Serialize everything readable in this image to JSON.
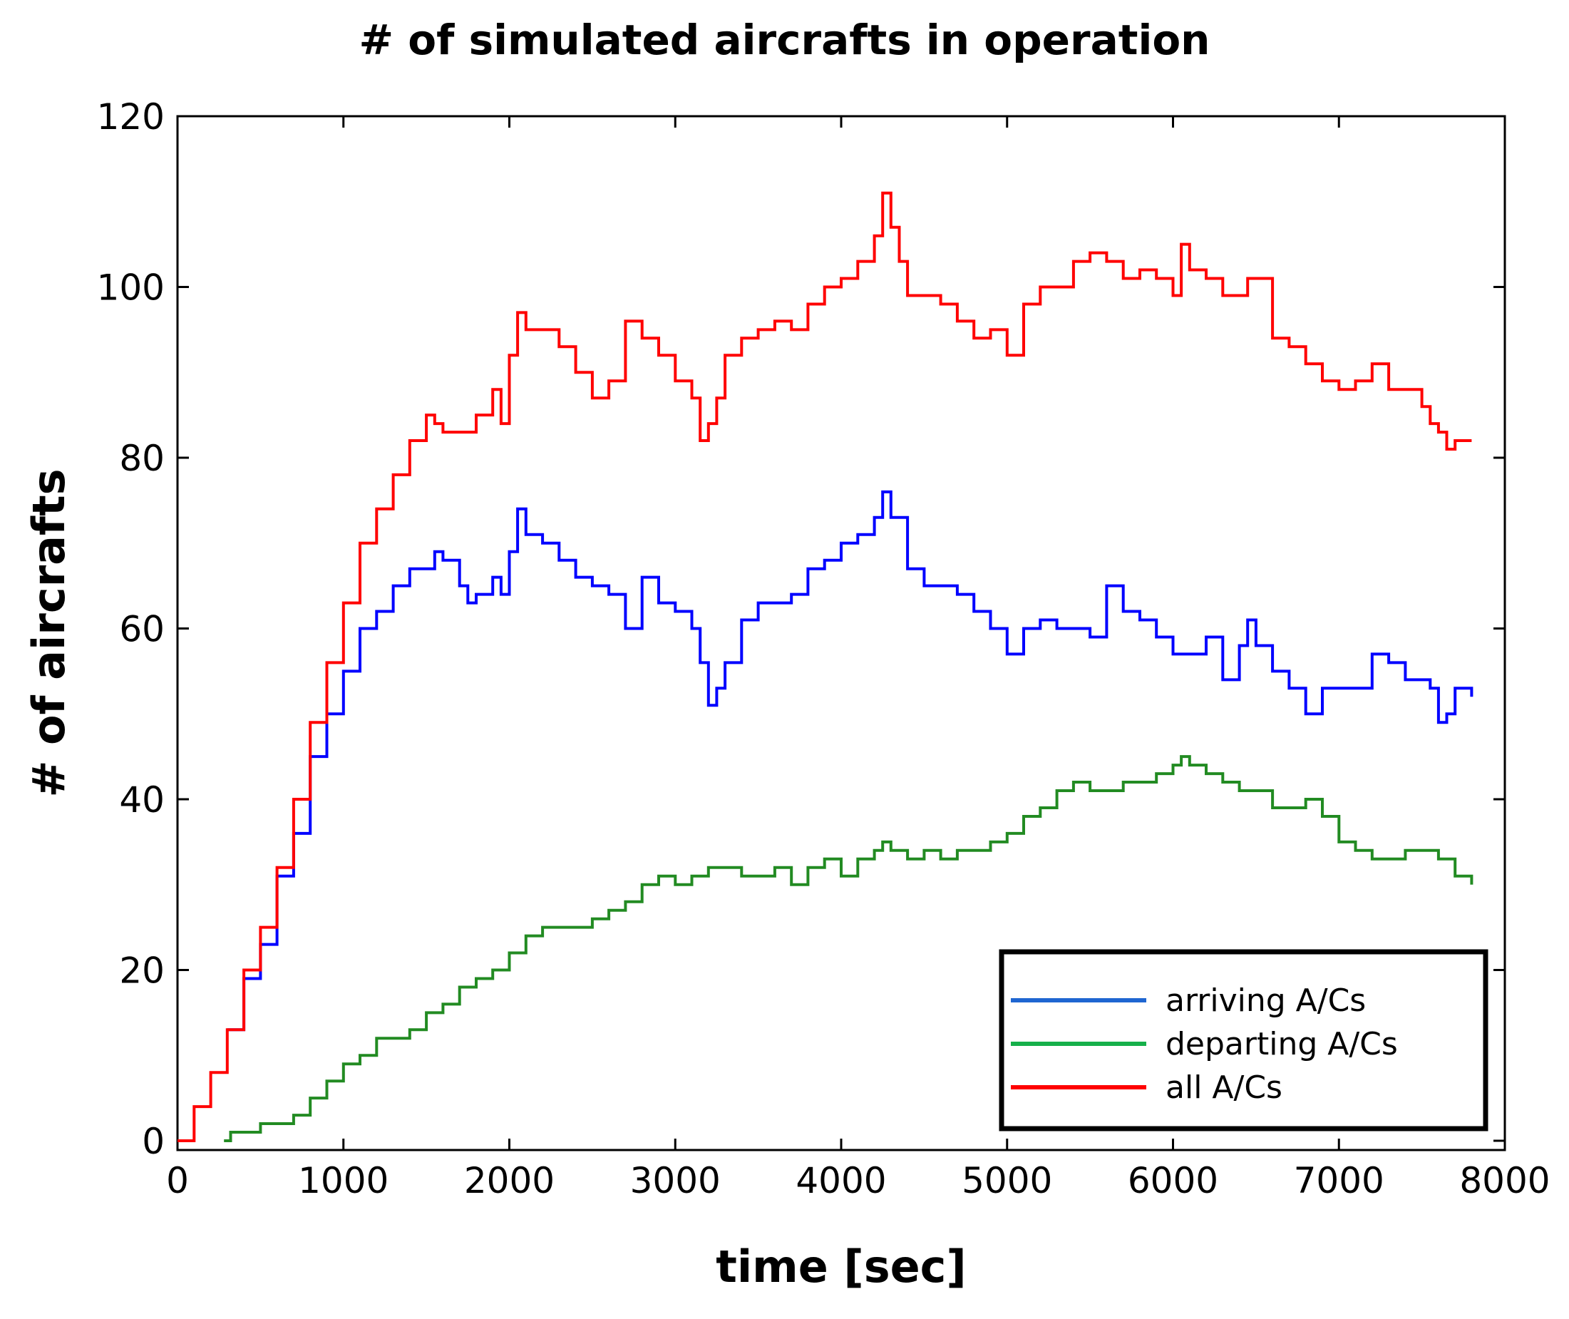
{
  "chart_data": {
    "type": "line",
    "title": "# of simulated aircrafts in operation",
    "xlabel": "time [sec]",
    "ylabel": "# of aircrafts",
    "xlim": [
      0,
      8000
    ],
    "ylim": [
      0,
      120
    ],
    "xticks": [
      0,
      1000,
      2000,
      3000,
      4000,
      5000,
      6000,
      7000,
      8000
    ],
    "yticks": [
      0,
      20,
      40,
      60,
      80,
      100,
      120
    ],
    "grid": false,
    "legend_position": "bottom-right",
    "series": [
      {
        "name": "arriving A/Cs",
        "legend_label": "arriving A/Cs",
        "legend_color": "#1f66d1",
        "color": "#0000ff",
        "x": [
          300,
          400,
          500,
          600,
          700,
          800,
          900,
          1000,
          1100,
          1200,
          1300,
          1400,
          1500,
          1550,
          1600,
          1700,
          1750,
          1800,
          1900,
          1950,
          2000,
          2050,
          2100,
          2200,
          2300,
          2400,
          2500,
          2600,
          2700,
          2800,
          2900,
          3000,
          3100,
          3150,
          3200,
          3250,
          3300,
          3400,
          3500,
          3600,
          3700,
          3800,
          3900,
          4000,
          4100,
          4200,
          4250,
          4300,
          4400,
          4500,
          4600,
          4700,
          4800,
          4900,
          5000,
          5100,
          5200,
          5300,
          5400,
          5500,
          5600,
          5700,
          5800,
          5900,
          6000,
          6100,
          6200,
          6300,
          6400,
          6450,
          6500,
          6600,
          6700,
          6800,
          6900,
          7000,
          7100,
          7200,
          7300,
          7400,
          7500,
          7550,
          7600,
          7650,
          7700,
          7800
        ],
        "values": [
          13,
          19,
          23,
          31,
          36,
          45,
          50,
          55,
          60,
          62,
          65,
          67,
          67,
          69,
          68,
          65,
          63,
          64,
          66,
          64,
          69,
          74,
          71,
          70,
          68,
          66,
          65,
          64,
          60,
          66,
          63,
          62,
          60,
          56,
          51,
          53,
          56,
          61,
          63,
          63,
          64,
          67,
          68,
          70,
          71,
          73,
          76,
          73,
          67,
          65,
          65,
          64,
          62,
          60,
          57,
          60,
          61,
          60,
          60,
          59,
          65,
          62,
          61,
          59,
          57,
          57,
          59,
          54,
          58,
          61,
          58,
          55,
          53,
          50,
          53,
          53,
          53,
          57,
          56,
          54,
          54,
          53,
          49,
          50,
          53,
          52
        ]
      },
      {
        "name": "departing A/Cs",
        "legend_label": "departing A/Cs",
        "legend_color": "#16b04a",
        "color": "#228b22",
        "x": [
          280,
          320,
          400,
          500,
          600,
          700,
          800,
          900,
          1000,
          1100,
          1200,
          1300,
          1400,
          1500,
          1600,
          1700,
          1800,
          1900,
          2000,
          2100,
          2200,
          2300,
          2400,
          2500,
          2600,
          2700,
          2800,
          2900,
          3000,
          3100,
          3200,
          3300,
          3400,
          3500,
          3600,
          3700,
          3800,
          3900,
          4000,
          4100,
          4200,
          4250,
          4300,
          4400,
          4500,
          4600,
          4700,
          4800,
          4900,
          5000,
          5100,
          5200,
          5300,
          5400,
          5500,
          5600,
          5700,
          5800,
          5900,
          6000,
          6050,
          6100,
          6200,
          6300,
          6400,
          6500,
          6600,
          6700,
          6800,
          6900,
          7000,
          7100,
          7200,
          7300,
          7400,
          7500,
          7600,
          7700,
          7800
        ],
        "values": [
          0,
          1,
          1,
          2,
          2,
          3,
          5,
          7,
          9,
          10,
          12,
          12,
          13,
          15,
          16,
          18,
          19,
          20,
          22,
          24,
          25,
          25,
          25,
          26,
          27,
          28,
          30,
          31,
          30,
          31,
          32,
          32,
          31,
          31,
          32,
          30,
          32,
          33,
          31,
          33,
          34,
          35,
          34,
          33,
          34,
          33,
          34,
          34,
          35,
          36,
          38,
          39,
          41,
          42,
          41,
          41,
          42,
          42,
          43,
          44,
          45,
          44,
          43,
          42,
          41,
          41,
          39,
          39,
          40,
          38,
          35,
          34,
          33,
          33,
          34,
          34,
          33,
          31,
          30
        ]
      },
      {
        "name": "all A/Cs",
        "legend_label": "all A/Cs",
        "legend_color": "#ff0000",
        "color": "#ff0000",
        "x": [
          0,
          100,
          200,
          300,
          400,
          500,
          600,
          700,
          800,
          900,
          1000,
          1100,
          1200,
          1300,
          1400,
          1500,
          1550,
          1600,
          1700,
          1800,
          1900,
          1950,
          2000,
          2050,
          2100,
          2200,
          2300,
          2400,
          2500,
          2600,
          2700,
          2800,
          2900,
          3000,
          3100,
          3150,
          3200,
          3250,
          3300,
          3400,
          3500,
          3600,
          3700,
          3800,
          3900,
          4000,
          4100,
          4200,
          4250,
          4300,
          4350,
          4400,
          4500,
          4600,
          4700,
          4800,
          4900,
          5000,
          5100,
          5200,
          5300,
          5400,
          5500,
          5600,
          5700,
          5800,
          5900,
          6000,
          6050,
          6100,
          6200,
          6300,
          6400,
          6450,
          6500,
          6600,
          6700,
          6800,
          6900,
          7000,
          7100,
          7200,
          7300,
          7400,
          7500,
          7550,
          7600,
          7650,
          7700,
          7800
        ],
        "values": [
          0,
          4,
          8,
          13,
          20,
          25,
          32,
          40,
          49,
          56,
          63,
          70,
          74,
          78,
          82,
          85,
          84,
          83,
          83,
          85,
          88,
          84,
          92,
          97,
          95,
          95,
          93,
          90,
          87,
          89,
          96,
          94,
          92,
          89,
          87,
          82,
          84,
          87,
          92,
          94,
          95,
          96,
          95,
          98,
          100,
          101,
          103,
          106,
          111,
          107,
          103,
          99,
          99,
          98,
          96,
          94,
          95,
          92,
          98,
          100,
          100,
          103,
          104,
          103,
          101,
          102,
          101,
          99,
          105,
          102,
          101,
          99,
          99,
          101,
          101,
          94,
          93,
          91,
          89,
          88,
          89,
          91,
          88,
          88,
          86,
          84,
          83,
          81,
          82,
          82
        ]
      }
    ]
  }
}
